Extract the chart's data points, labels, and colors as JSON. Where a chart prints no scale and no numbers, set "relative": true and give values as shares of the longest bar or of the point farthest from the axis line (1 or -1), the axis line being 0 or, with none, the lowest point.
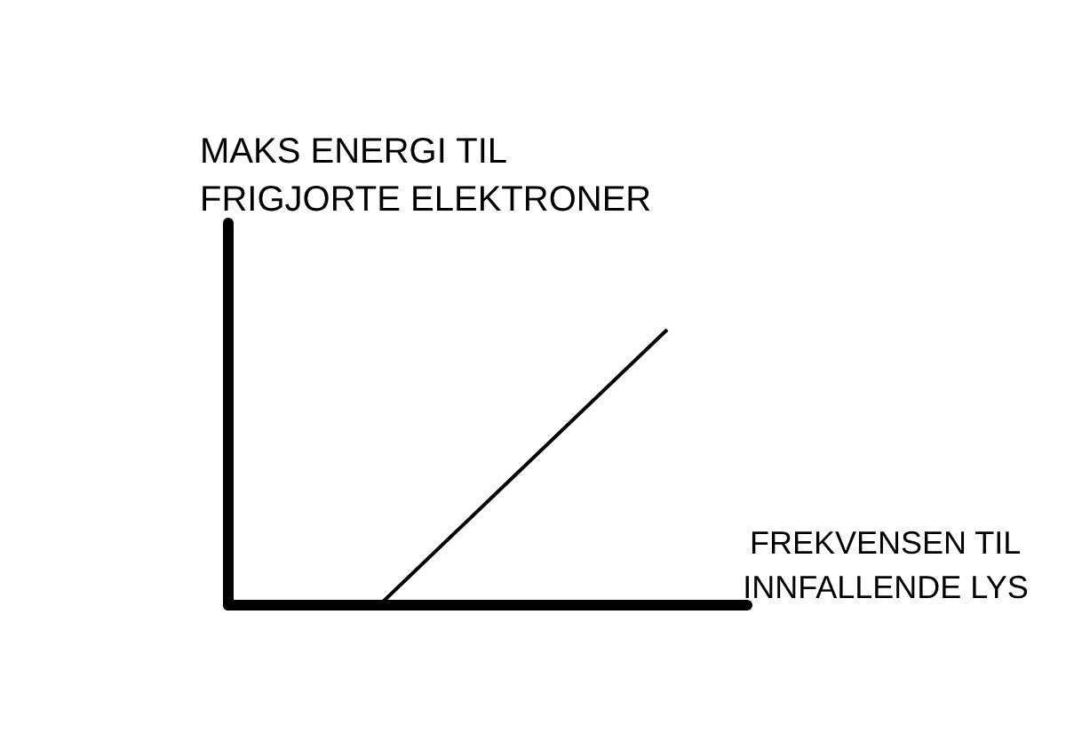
{
  "chart_data": {
    "type": "line",
    "xlabel": "FREKVENSEN TIL INNFALLENDE LYS",
    "ylabel": "MAKS ENERGI TIL FRIGJORTE ELEKTRONER",
    "categories": [
      null,
      null,
      null
    ],
    "values": [
      0,
      0.5,
      1
    ],
    "color": "#000000",
    "relative": true
  }
}
